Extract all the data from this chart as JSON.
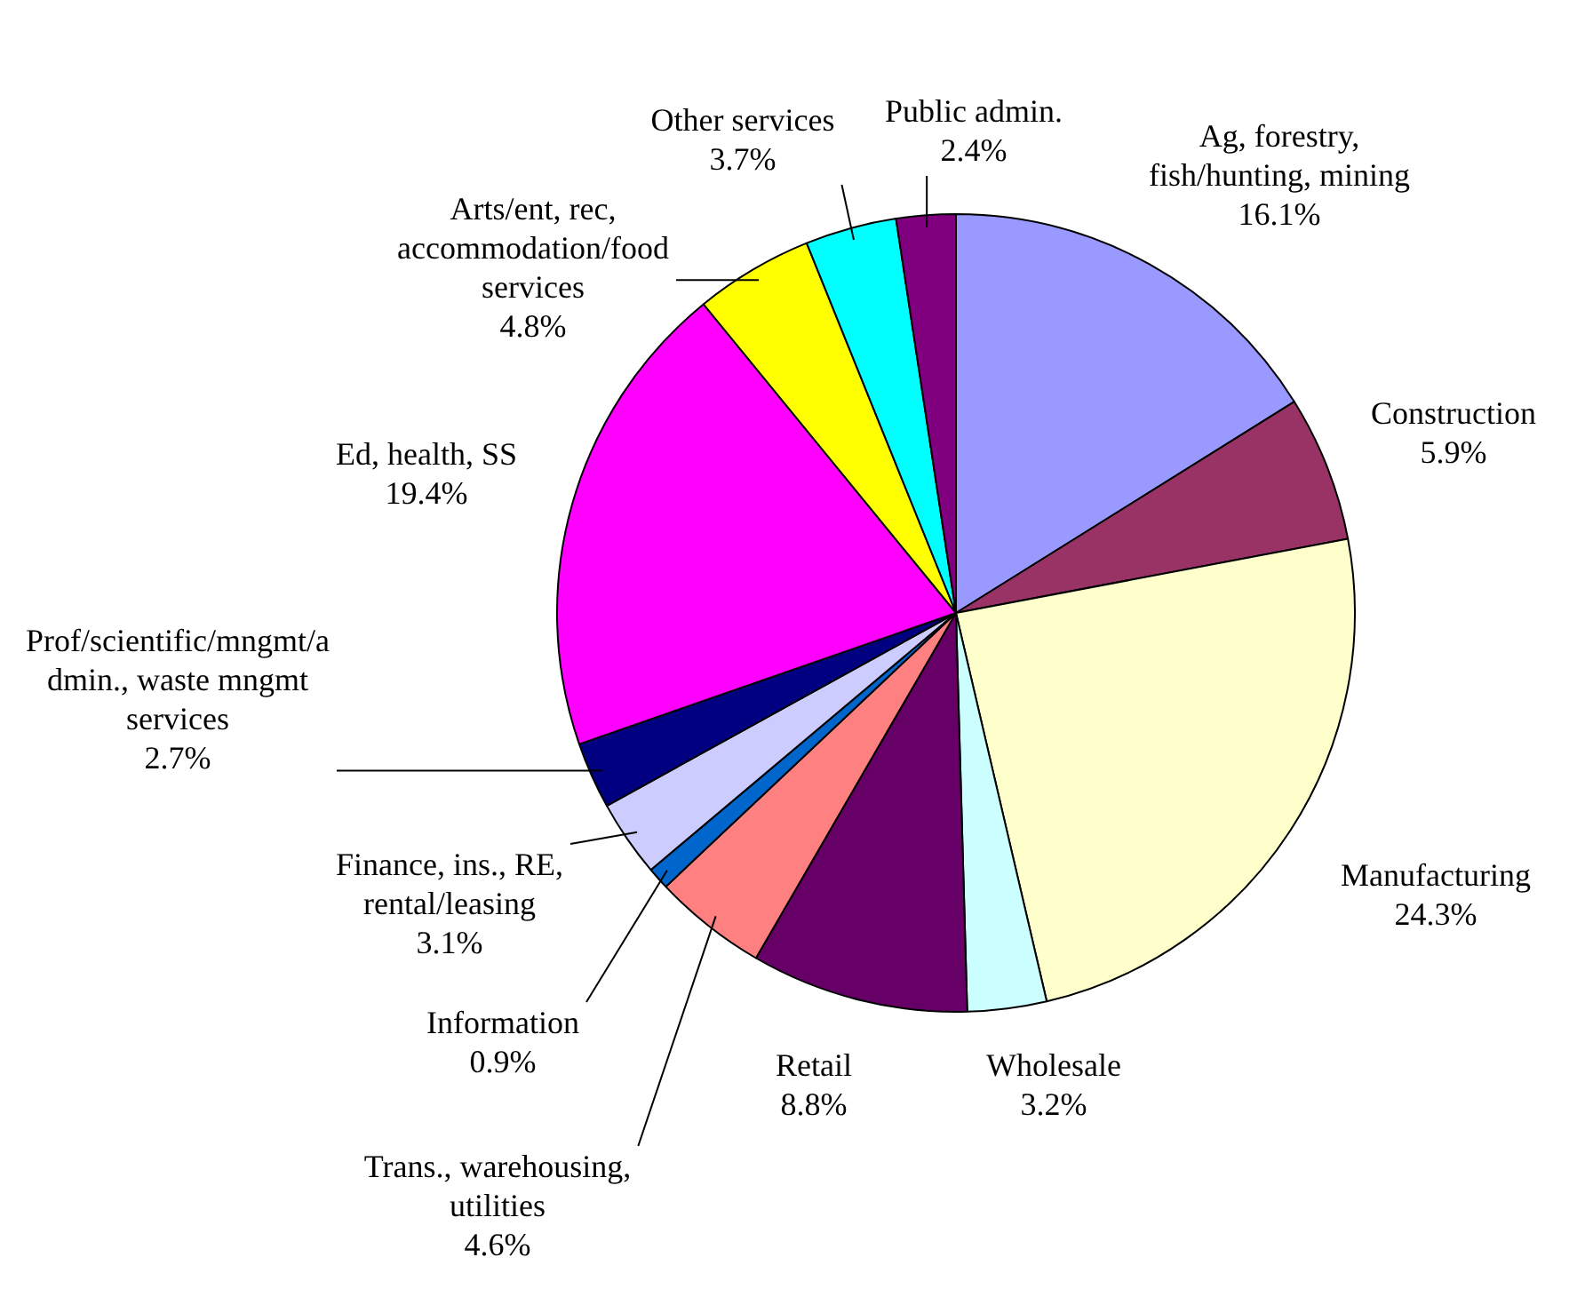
{
  "chart_data": {
    "type": "pie",
    "categories": [
      "Ag, forestry, fish/hunting, mining",
      "Construction",
      "Manufacturing",
      "Wholesale",
      "Retail",
      "Trans., warehousing, utilities",
      "Information",
      "Finance, ins., RE, rental/leasing",
      "Prof/scientific/mngmt/admin., waste mngmt services",
      "Ed, health, SS",
      "Arts/ent, rec, accommodation/food services",
      "Other services",
      "Public admin."
    ],
    "values": [
      16.1,
      5.9,
      24.3,
      3.2,
      8.8,
      4.6,
      0.9,
      3.1,
      2.7,
      19.4,
      4.8,
      3.7,
      2.4
    ],
    "value_labels": [
      "16.1%",
      "5.9%",
      "24.3%",
      "3.2%",
      "8.8%",
      "4.6%",
      "0.9%",
      "3.1%",
      "2.7%",
      "19.4%",
      "4.8%",
      "3.7%",
      "2.4%"
    ],
    "colors": [
      "#9999ff",
      "#993366",
      "#ffffcc",
      "#ccffff",
      "#660066",
      "#ff8080",
      "#0066cc",
      "#ccccff",
      "#000080",
      "#ff00ff",
      "#ffff00",
      "#00ffff",
      "#800080"
    ],
    "legend": false
  }
}
